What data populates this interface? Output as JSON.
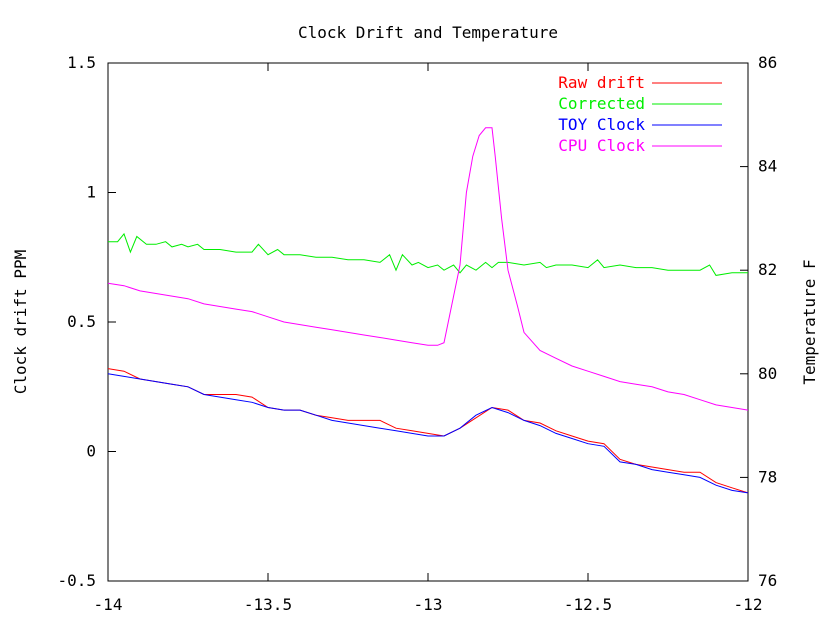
{
  "chart_data": {
    "type": "line",
    "title": "Clock Drift and Temperature",
    "xlabel": "",
    "ylabel": "Clock drift PPM",
    "y2label": "Temperature F",
    "xlim": [
      -14,
      -12
    ],
    "ylim": [
      -0.5,
      1.5
    ],
    "y2lim": [
      76,
      86
    ],
    "x_ticks": [
      "-14",
      "-13.5",
      "-13",
      "-12.5",
      "-12"
    ],
    "y_ticks": [
      "-0.5",
      "0",
      "0.5",
      "1",
      "1.5"
    ],
    "y2_ticks": [
      "76",
      "78",
      "80",
      "82",
      "84",
      "86"
    ],
    "grid": false,
    "legend_position": "top-right",
    "series": [
      {
        "name": "Raw drift",
        "color": "#ff0000",
        "axis": "left",
        "x": [
          -14,
          -13.95,
          -13.9,
          -13.85,
          -13.8,
          -13.75,
          -13.7,
          -13.65,
          -13.6,
          -13.55,
          -13.5,
          -13.45,
          -13.4,
          -13.35,
          -13.3,
          -13.25,
          -13.2,
          -13.15,
          -13.1,
          -13.05,
          -13.0,
          -12.95,
          -12.9,
          -12.85,
          -12.8,
          -12.75,
          -12.7,
          -12.65,
          -12.6,
          -12.55,
          -12.5,
          -12.45,
          -12.4,
          -12.35,
          -12.3,
          -12.25,
          -12.2,
          -12.15,
          -12.1,
          -12.05,
          -12.0
        ],
        "values": [
          0.32,
          0.31,
          0.28,
          0.27,
          0.26,
          0.25,
          0.22,
          0.22,
          0.22,
          0.21,
          0.17,
          0.16,
          0.16,
          0.14,
          0.13,
          0.12,
          0.12,
          0.12,
          0.09,
          0.08,
          0.07,
          0.06,
          0.09,
          0.13,
          0.17,
          0.16,
          0.12,
          0.11,
          0.08,
          0.06,
          0.04,
          0.03,
          -0.03,
          -0.05,
          -0.06,
          -0.07,
          -0.08,
          -0.08,
          -0.12,
          -0.14,
          -0.16
        ]
      },
      {
        "name": "Corrected",
        "color": "#00ee00",
        "axis": "left",
        "x": [
          -14,
          -13.97,
          -13.95,
          -13.93,
          -13.91,
          -13.88,
          -13.85,
          -13.82,
          -13.8,
          -13.77,
          -13.75,
          -13.72,
          -13.7,
          -13.65,
          -13.6,
          -13.55,
          -13.53,
          -13.5,
          -13.47,
          -13.45,
          -13.4,
          -13.35,
          -13.3,
          -13.25,
          -13.2,
          -13.15,
          -13.12,
          -13.1,
          -13.08,
          -13.05,
          -13.03,
          -13.0,
          -12.97,
          -12.95,
          -12.92,
          -12.9,
          -12.88,
          -12.85,
          -12.82,
          -12.8,
          -12.78,
          -12.75,
          -12.7,
          -12.65,
          -12.63,
          -12.6,
          -12.55,
          -12.5,
          -12.47,
          -12.45,
          -12.4,
          -12.35,
          -12.3,
          -12.25,
          -12.2,
          -12.15,
          -12.12,
          -12.1,
          -12.05,
          -12.0
        ],
        "values": [
          0.81,
          0.81,
          0.84,
          0.77,
          0.83,
          0.8,
          0.8,
          0.81,
          0.79,
          0.8,
          0.79,
          0.8,
          0.78,
          0.78,
          0.77,
          0.77,
          0.8,
          0.76,
          0.78,
          0.76,
          0.76,
          0.75,
          0.75,
          0.74,
          0.74,
          0.73,
          0.76,
          0.7,
          0.76,
          0.72,
          0.73,
          0.71,
          0.72,
          0.7,
          0.72,
          0.69,
          0.72,
          0.7,
          0.73,
          0.71,
          0.73,
          0.73,
          0.72,
          0.73,
          0.71,
          0.72,
          0.72,
          0.71,
          0.74,
          0.71,
          0.72,
          0.71,
          0.71,
          0.7,
          0.7,
          0.7,
          0.72,
          0.68,
          0.69,
          0.69
        ]
      },
      {
        "name": "TOY Clock",
        "color": "#0000ff",
        "axis": "left",
        "x": [
          -14,
          -13.95,
          -13.9,
          -13.85,
          -13.8,
          -13.75,
          -13.7,
          -13.65,
          -13.6,
          -13.55,
          -13.5,
          -13.45,
          -13.4,
          -13.35,
          -13.3,
          -13.25,
          -13.2,
          -13.15,
          -13.1,
          -13.05,
          -13.0,
          -12.95,
          -12.9,
          -12.85,
          -12.8,
          -12.75,
          -12.7,
          -12.65,
          -12.6,
          -12.55,
          -12.5,
          -12.45,
          -12.4,
          -12.35,
          -12.3,
          -12.25,
          -12.2,
          -12.15,
          -12.1,
          -12.05,
          -12.0
        ],
        "values": [
          0.3,
          0.29,
          0.28,
          0.27,
          0.26,
          0.25,
          0.22,
          0.21,
          0.2,
          0.19,
          0.17,
          0.16,
          0.16,
          0.14,
          0.12,
          0.11,
          0.1,
          0.09,
          0.08,
          0.07,
          0.06,
          0.06,
          0.09,
          0.14,
          0.17,
          0.15,
          0.12,
          0.1,
          0.07,
          0.05,
          0.03,
          0.02,
          -0.04,
          -0.05,
          -0.07,
          -0.08,
          -0.09,
          -0.1,
          -0.13,
          -0.15,
          -0.16
        ]
      },
      {
        "name": "CPU Clock",
        "color": "#ff00ff",
        "axis": "right",
        "x": [
          -14,
          -13.95,
          -13.9,
          -13.85,
          -13.8,
          -13.75,
          -13.7,
          -13.65,
          -13.6,
          -13.55,
          -13.5,
          -13.45,
          -13.4,
          -13.35,
          -13.3,
          -13.25,
          -13.2,
          -13.15,
          -13.1,
          -13.05,
          -13.0,
          -12.97,
          -12.95,
          -12.93,
          -12.9,
          -12.88,
          -12.86,
          -12.84,
          -12.82,
          -12.8,
          -12.79,
          -12.77,
          -12.75,
          -12.72,
          -12.7,
          -12.65,
          -12.6,
          -12.55,
          -12.5,
          -12.45,
          -12.4,
          -12.35,
          -12.3,
          -12.25,
          -12.2,
          -12.15,
          -12.1,
          -12.05,
          -12.0
        ],
        "values": [
          81.75,
          81.7,
          81.6,
          81.55,
          81.5,
          81.45,
          81.35,
          81.3,
          81.25,
          81.2,
          81.1,
          81.0,
          80.95,
          80.9,
          80.85,
          80.8,
          80.75,
          80.7,
          80.65,
          80.6,
          80.55,
          80.55,
          80.6,
          81.2,
          82.1,
          83.5,
          84.2,
          84.6,
          84.75,
          84.75,
          84.2,
          83.0,
          82.0,
          81.3,
          80.8,
          80.45,
          80.3,
          80.15,
          80.05,
          79.95,
          79.85,
          79.8,
          79.75,
          79.65,
          79.6,
          79.5,
          79.4,
          79.35,
          79.3
        ]
      }
    ]
  }
}
